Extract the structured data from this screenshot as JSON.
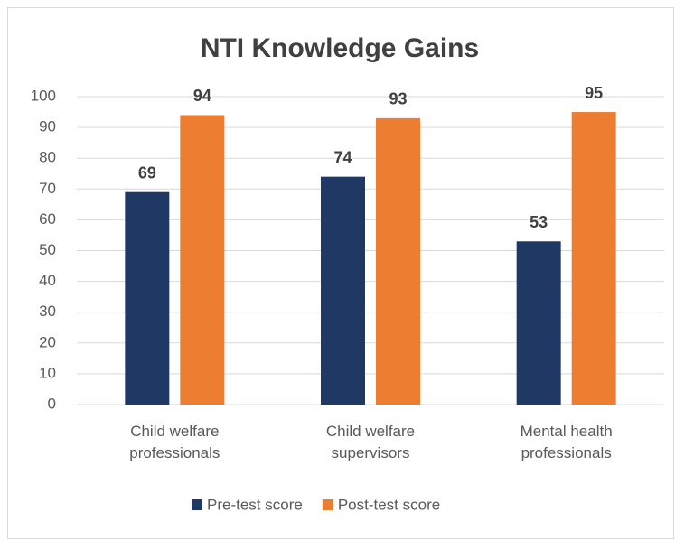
{
  "chart_data": {
    "type": "bar",
    "title": "NTI Knowledge Gains",
    "categories": [
      "Child welfare professionals",
      "Child welfare supervisors",
      "Mental health professionals"
    ],
    "series": [
      {
        "name": "Pre-test score",
        "color": "#203864",
        "values": [
          69,
          74,
          53
        ]
      },
      {
        "name": "Post-test score",
        "color": "#ed7d31",
        "values": [
          94,
          93,
          95
        ]
      }
    ],
    "ylim": [
      0,
      100
    ],
    "yticks": [
      0,
      10,
      20,
      30,
      40,
      50,
      60,
      70,
      80,
      90,
      100
    ],
    "grid": true,
    "legend": "bottom"
  }
}
